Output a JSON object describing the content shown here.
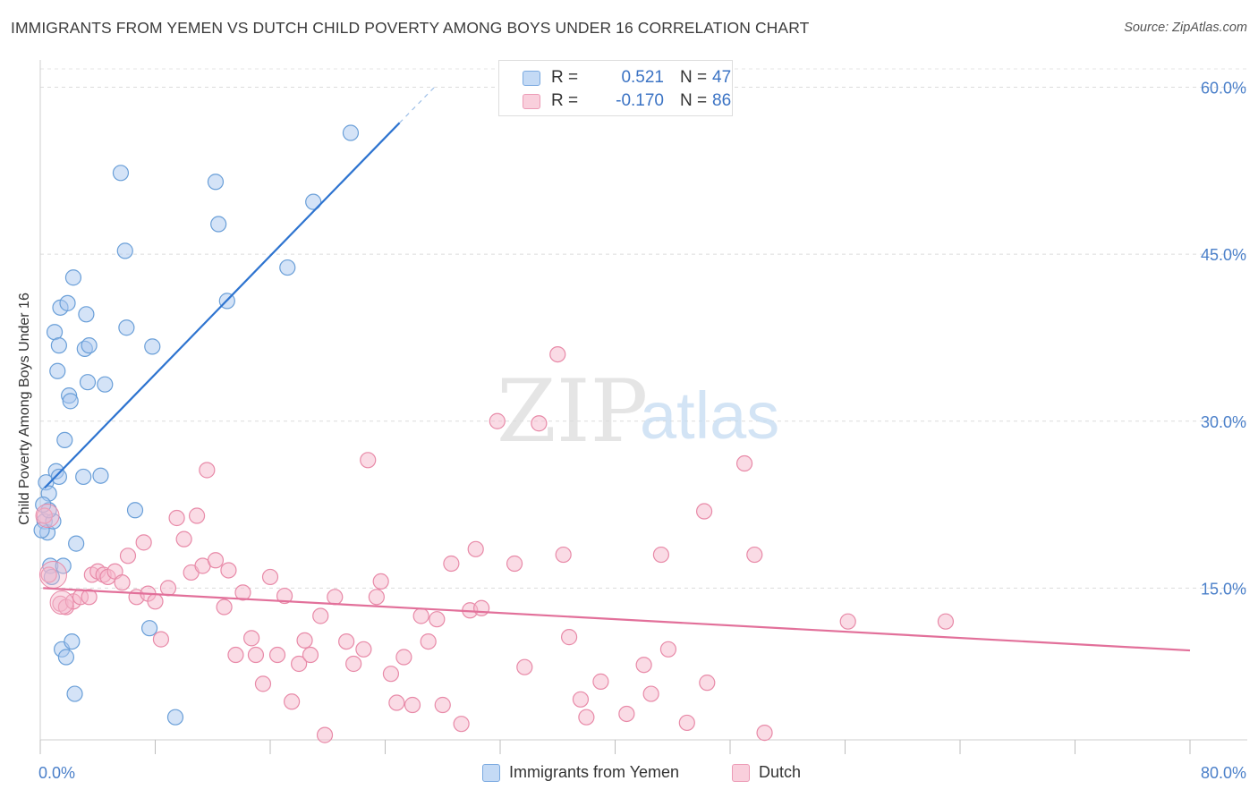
{
  "header": {
    "title": "IMMIGRANTS FROM YEMEN VS DUTCH CHILD POVERTY AMONG BOYS UNDER 16 CORRELATION CHART",
    "source": "Source: ZipAtlas.com"
  },
  "watermark": {
    "zip": "ZIP",
    "atlas": "atlas"
  },
  "legend": {
    "rows": [
      {
        "r_label": "R =",
        "r_value": "0.521",
        "n_label": "N =",
        "n_value": "47",
        "color": "#a9c8f0"
      },
      {
        "r_label": "R =",
        "r_value": "-0.170",
        "n_label": "N =",
        "n_value": "86",
        "color": "#f5b8cb"
      }
    ]
  },
  "bottom_legend": [
    {
      "label": "Immigrants from Yemen",
      "color": "#a9c8f0"
    },
    {
      "label": "Dutch",
      "color": "#f5b8cb"
    }
  ],
  "chart_data": {
    "type": "scatter",
    "title": "IMMIGRANTS FROM YEMEN VS DUTCH CHILD POVERTY AMONG BOYS UNDER 16 CORRELATION CHART",
    "xlabel": "",
    "ylabel": "Child Poverty Among Boys Under 16",
    "xlim": [
      0,
      80
    ],
    "ylim": [
      0,
      63
    ],
    "x_tick_labels": [
      "0.0%",
      "80.0%"
    ],
    "y_ticks": [
      15,
      30,
      45,
      60
    ],
    "y_tick_labels": [
      "15.0%",
      "30.0%",
      "45.0%",
      "60.0%"
    ],
    "grid": true,
    "series": [
      {
        "name": "Immigrants from Yemen",
        "color": "#6a9fd8",
        "fill": "#a9c8f0",
        "points": [
          [
            0.3,
            21
          ],
          [
            0.5,
            20
          ],
          [
            0.4,
            24.5
          ],
          [
            0.6,
            23.5
          ],
          [
            0.7,
            17
          ],
          [
            0.9,
            21
          ],
          [
            0.8,
            16
          ],
          [
            0.6,
            22
          ],
          [
            1.0,
            38
          ],
          [
            1.2,
            34.5
          ],
          [
            1.1,
            25.5
          ],
          [
            1.3,
            36.8
          ],
          [
            1.4,
            40.2
          ],
          [
            1.3,
            25
          ],
          [
            1.5,
            9.5
          ],
          [
            1.6,
            17
          ],
          [
            1.7,
            28.3
          ],
          [
            1.8,
            8.8
          ],
          [
            1.9,
            40.6
          ],
          [
            2.0,
            32.3
          ],
          [
            2.1,
            31.8
          ],
          [
            2.2,
            10.2
          ],
          [
            2.3,
            42.9
          ],
          [
            2.4,
            5.5
          ],
          [
            2.5,
            19
          ],
          [
            3.0,
            25
          ],
          [
            3.1,
            36.5
          ],
          [
            3.2,
            39.6
          ],
          [
            3.3,
            33.5
          ],
          [
            3.4,
            36.8
          ],
          [
            4.2,
            25.1
          ],
          [
            4.5,
            33.3
          ],
          [
            5.6,
            52.3
          ],
          [
            5.9,
            45.3
          ],
          [
            6.0,
            38.4
          ],
          [
            6.6,
            22
          ],
          [
            7.6,
            11.4
          ],
          [
            7.8,
            36.7
          ],
          [
            9.4,
            3.4
          ],
          [
            12.2,
            51.5
          ],
          [
            12.4,
            47.7
          ],
          [
            13.0,
            40.8
          ],
          [
            17.2,
            43.8
          ],
          [
            19.0,
            49.7
          ],
          [
            21.6,
            55.9
          ],
          [
            0.1,
            20.2
          ],
          [
            0.2,
            22.5
          ]
        ]
      },
      {
        "name": "Dutch",
        "color": "#e88aa8",
        "fill": "#f5b8cb",
        "points": [
          [
            0.3,
            21.5
          ],
          [
            0.6,
            16.2
          ],
          [
            1.4,
            13.6
          ],
          [
            1.8,
            13.3
          ],
          [
            2.3,
            13.8
          ],
          [
            2.8,
            14.2
          ],
          [
            3.4,
            14.2
          ],
          [
            3.6,
            16.2
          ],
          [
            4.0,
            16.5
          ],
          [
            4.4,
            16.2
          ],
          [
            4.7,
            16.0
          ],
          [
            5.2,
            16.5
          ],
          [
            5.7,
            15.5
          ],
          [
            6.1,
            17.9
          ],
          [
            6.7,
            14.2
          ],
          [
            7.2,
            19.1
          ],
          [
            7.5,
            14.5
          ],
          [
            8.0,
            13.8
          ],
          [
            8.4,
            10.4
          ],
          [
            8.9,
            15.0
          ],
          [
            9.5,
            21.3
          ],
          [
            10.0,
            19.4
          ],
          [
            10.5,
            16.4
          ],
          [
            10.9,
            21.5
          ],
          [
            11.3,
            17.0
          ],
          [
            11.6,
            25.6
          ],
          [
            12.2,
            17.5
          ],
          [
            12.8,
            13.3
          ],
          [
            13.1,
            16.6
          ],
          [
            13.6,
            9.0
          ],
          [
            14.1,
            14.6
          ],
          [
            14.7,
            10.5
          ],
          [
            15.0,
            9.0
          ],
          [
            15.5,
            6.4
          ],
          [
            16.0,
            16.0
          ],
          [
            16.5,
            9.0
          ],
          [
            17.0,
            14.3
          ],
          [
            17.5,
            4.8
          ],
          [
            18.0,
            8.2
          ],
          [
            18.4,
            10.3
          ],
          [
            18.8,
            9.0
          ],
          [
            19.5,
            12.5
          ],
          [
            19.8,
            1.8
          ],
          [
            20.5,
            14.2
          ],
          [
            21.3,
            10.2
          ],
          [
            21.8,
            8.2
          ],
          [
            22.5,
            9.5
          ],
          [
            22.8,
            26.5
          ],
          [
            23.4,
            14.2
          ],
          [
            23.7,
            15.6
          ],
          [
            24.4,
            7.3
          ],
          [
            24.8,
            4.7
          ],
          [
            25.3,
            8.8
          ],
          [
            25.9,
            4.5
          ],
          [
            26.5,
            12.5
          ],
          [
            27.0,
            10.2
          ],
          [
            27.6,
            12.2
          ],
          [
            28.0,
            4.5
          ],
          [
            28.6,
            17.2
          ],
          [
            29.3,
            2.8
          ],
          [
            29.9,
            13.0
          ],
          [
            30.3,
            18.5
          ],
          [
            30.7,
            13.2
          ],
          [
            31.8,
            30.0
          ],
          [
            33.0,
            17.2
          ],
          [
            33.7,
            7.9
          ],
          [
            34.7,
            29.8
          ],
          [
            36.0,
            36.0
          ],
          [
            36.4,
            18.0
          ],
          [
            36.8,
            10.6
          ],
          [
            37.6,
            5.0
          ],
          [
            38.0,
            3.4
          ],
          [
            39.0,
            6.6
          ],
          [
            40.8,
            3.7
          ],
          [
            42.0,
            8.1
          ],
          [
            42.5,
            5.5
          ],
          [
            43.2,
            18.0
          ],
          [
            43.7,
            9.5
          ],
          [
            45.0,
            2.9
          ],
          [
            46.2,
            21.9
          ],
          [
            46.4,
            6.5
          ],
          [
            49.0,
            26.2
          ],
          [
            49.7,
            18.0
          ],
          [
            50.4,
            2.0
          ],
          [
            56.2,
            12.0
          ],
          [
            63.0,
            12.0
          ]
        ]
      }
    ],
    "trendlines": [
      {
        "series": "Immigrants from Yemen",
        "x": [
          0.3,
          25.0
        ],
        "y": [
          24.0,
          56.8
        ],
        "dashed_extension": [
          [
            25.0,
            56.8
          ],
          [
            27.5,
            60.1
          ]
        ]
      },
      {
        "series": "Dutch",
        "x": [
          0.2,
          80.0
        ],
        "y": [
          15.0,
          9.4
        ]
      }
    ]
  }
}
